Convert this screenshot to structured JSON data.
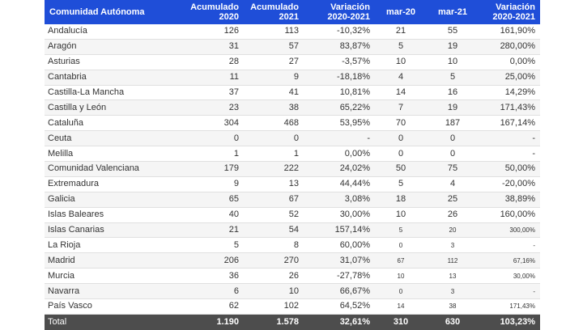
{
  "table": {
    "headers": {
      "region": "Comunidad Autónoma",
      "acum2020": "Acumulado 2020",
      "acum2021": "Acumulado 2021",
      "variacion": "Variación 2020-2021",
      "mar20": "mar-20",
      "mar21": "mar-21",
      "variacion2": "Variación 2020-2021"
    },
    "rows": [
      {
        "region": "Andalucía",
        "acum2020": "126",
        "acum2021": "113",
        "variacion": "-10,32%",
        "mar20": "21",
        "mar21": "55",
        "variacion2": "161,90%"
      },
      {
        "region": "Aragón",
        "acum2020": "31",
        "acum2021": "57",
        "variacion": "83,87%",
        "mar20": "5",
        "mar21": "19",
        "variacion2": "280,00%"
      },
      {
        "region": "Asturias",
        "acum2020": "28",
        "acum2021": "27",
        "variacion": "-3,57%",
        "mar20": "10",
        "mar21": "10",
        "variacion2": "0,00%"
      },
      {
        "region": "Cantabria",
        "acum2020": "11",
        "acum2021": "9",
        "variacion": "-18,18%",
        "mar20": "4",
        "mar21": "5",
        "variacion2": "25,00%"
      },
      {
        "region": "Castilla-La Mancha",
        "acum2020": "37",
        "acum2021": "41",
        "variacion": "10,81%",
        "mar20": "14",
        "mar21": "16",
        "variacion2": "14,29%"
      },
      {
        "region": "Castilla y León",
        "acum2020": "23",
        "acum2021": "38",
        "variacion": "65,22%",
        "mar20": "7",
        "mar21": "19",
        "variacion2": "171,43%"
      },
      {
        "region": "Cataluña",
        "acum2020": "304",
        "acum2021": "468",
        "variacion": "53,95%",
        "mar20": "70",
        "mar21": "187",
        "variacion2": "167,14%"
      },
      {
        "region": "Ceuta",
        "acum2020": "0",
        "acum2021": "0",
        "variacion": "-",
        "mar20": "0",
        "mar21": "0",
        "variacion2": "-"
      },
      {
        "region": "Melilla",
        "acum2020": "1",
        "acum2021": "1",
        "variacion": "0,00%",
        "mar20": "0",
        "mar21": "0",
        "variacion2": "-"
      },
      {
        "region": "Comunidad Valenciana",
        "acum2020": "179",
        "acum2021": "222",
        "variacion": "24,02%",
        "mar20": "50",
        "mar21": "75",
        "variacion2": "50,00%"
      },
      {
        "region": "Extremadura",
        "acum2020": "9",
        "acum2021": "13",
        "variacion": "44,44%",
        "mar20": "5",
        "mar21": "4",
        "variacion2": "-20,00%"
      },
      {
        "region": "Galicia",
        "acum2020": "65",
        "acum2021": "67",
        "variacion": "3,08%",
        "mar20": "18",
        "mar21": "25",
        "variacion2": "38,89%"
      },
      {
        "region": "Islas Baleares",
        "acum2020": "40",
        "acum2021": "52",
        "variacion": "30,00%",
        "mar20": "10",
        "mar21": "26",
        "variacion2": "160,00%"
      },
      {
        "region": "Islas Canarias",
        "acum2020": "21",
        "acum2021": "54",
        "variacion": "157,14%",
        "mar20": "5",
        "mar21": "20",
        "variacion2": "300,00%"
      },
      {
        "region": "La Rioja",
        "acum2020": "5",
        "acum2021": "8",
        "variacion": "60,00%",
        "mar20": "0",
        "mar21": "3",
        "variacion2": "-"
      },
      {
        "region": "Madrid",
        "acum2020": "206",
        "acum2021": "270",
        "variacion": "31,07%",
        "mar20": "67",
        "mar21": "112",
        "variacion2": "67,16%"
      },
      {
        "region": "Murcia",
        "acum2020": "36",
        "acum2021": "26",
        "variacion": "-27,78%",
        "mar20": "10",
        "mar21": "13",
        "variacion2": "30,00%"
      },
      {
        "region": "Navarra",
        "acum2020": "6",
        "acum2021": "10",
        "variacion": "66,67%",
        "mar20": "0",
        "mar21": "3",
        "variacion2": "-"
      },
      {
        "region": "País Vasco",
        "acum2020": "62",
        "acum2021": "102",
        "variacion": "64,52%",
        "mar20": "14",
        "mar21": "38",
        "variacion2": "171,43%"
      }
    ],
    "small_rows": [
      13,
      14,
      15,
      16,
      17,
      18
    ],
    "total": {
      "region": "Total",
      "acum2020": "1.190",
      "acum2021": "1.578",
      "variacion": "32,61%",
      "mar20": "310",
      "mar21": "630",
      "variacion2": "103,23%"
    }
  },
  "colors": {
    "header_bg": "#1f4ed8",
    "footer_bg": "#4d4d4d",
    "stripe": "#f5f5f5"
  }
}
